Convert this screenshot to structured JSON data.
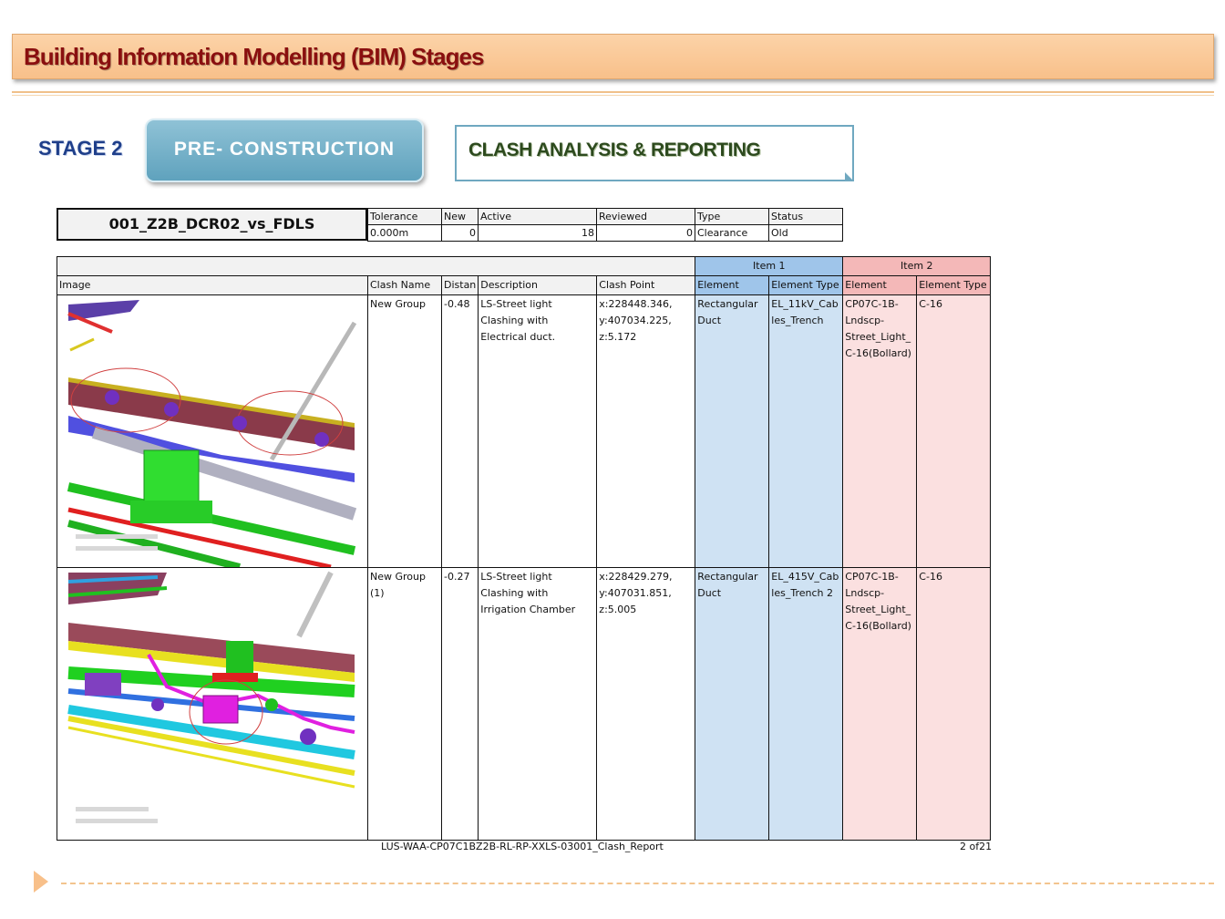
{
  "header": {
    "title": "Building Information Modelling (BIM) Stages"
  },
  "stage": {
    "label": "STAGE 2",
    "phase": "PRE- CONSTRUCTION",
    "topic": "CLASH ANALYSIS & REPORTING"
  },
  "summary": {
    "test_name": "001_Z2B_DCR02_vs_FDLS",
    "headers": [
      "Tolerance",
      "New",
      "Active",
      "Reviewed",
      "Type",
      "Status"
    ],
    "values": [
      "0.000m",
      "0",
      "18",
      "0",
      "Clearance",
      "Old"
    ]
  },
  "report": {
    "group_item1": "Item 1",
    "group_item2": "Item 2",
    "columns": [
      "Image",
      "Clash Name",
      "Distan",
      "Description",
      "Clash Point",
      "Element",
      "Element Type",
      "Element",
      "Element Type"
    ],
    "rows": [
      {
        "clash_name": "New Group",
        "distance": "-0.48",
        "description": "LS-Street light Clashing with Electrical duct.",
        "clash_point": "x:228448.346, y:407034.225, z:5.172",
        "item1_element": "Rectangular Duct",
        "item1_type": "EL_11kV_Cab les_Trench",
        "item2_element": "CP07C-1B- Lndscp- Street_Light_ C-16(Bollard)",
        "item2_type": "C-16"
      },
      {
        "clash_name": "New Group (1)",
        "distance": "-0.27",
        "description": "LS-Street light Clashing with Irrigation Chamber",
        "clash_point": "x:228429.279, y:407031.851, z:5.005",
        "item1_element": "Rectangular Duct",
        "item1_type": "EL_415V_Cab les_Trench 2",
        "item2_element": "CP07C-1B- Lndscp- Street_Light_ C-16(Bollard)",
        "item2_type": "C-16"
      }
    ]
  },
  "footer": {
    "doc_ref": "LUS-WAA-CP07C1BZ2B-RL-RP-XXLS-03001_Clash_Report",
    "page": "2 of21"
  },
  "colors": {
    "banner": "#f8c08a",
    "banner_text": "#8a0f0f",
    "stage_text": "#1f3f8a",
    "phase_box": "#6fa8c0",
    "item1": "#cfe2f3",
    "item2": "#fbe0e0"
  }
}
